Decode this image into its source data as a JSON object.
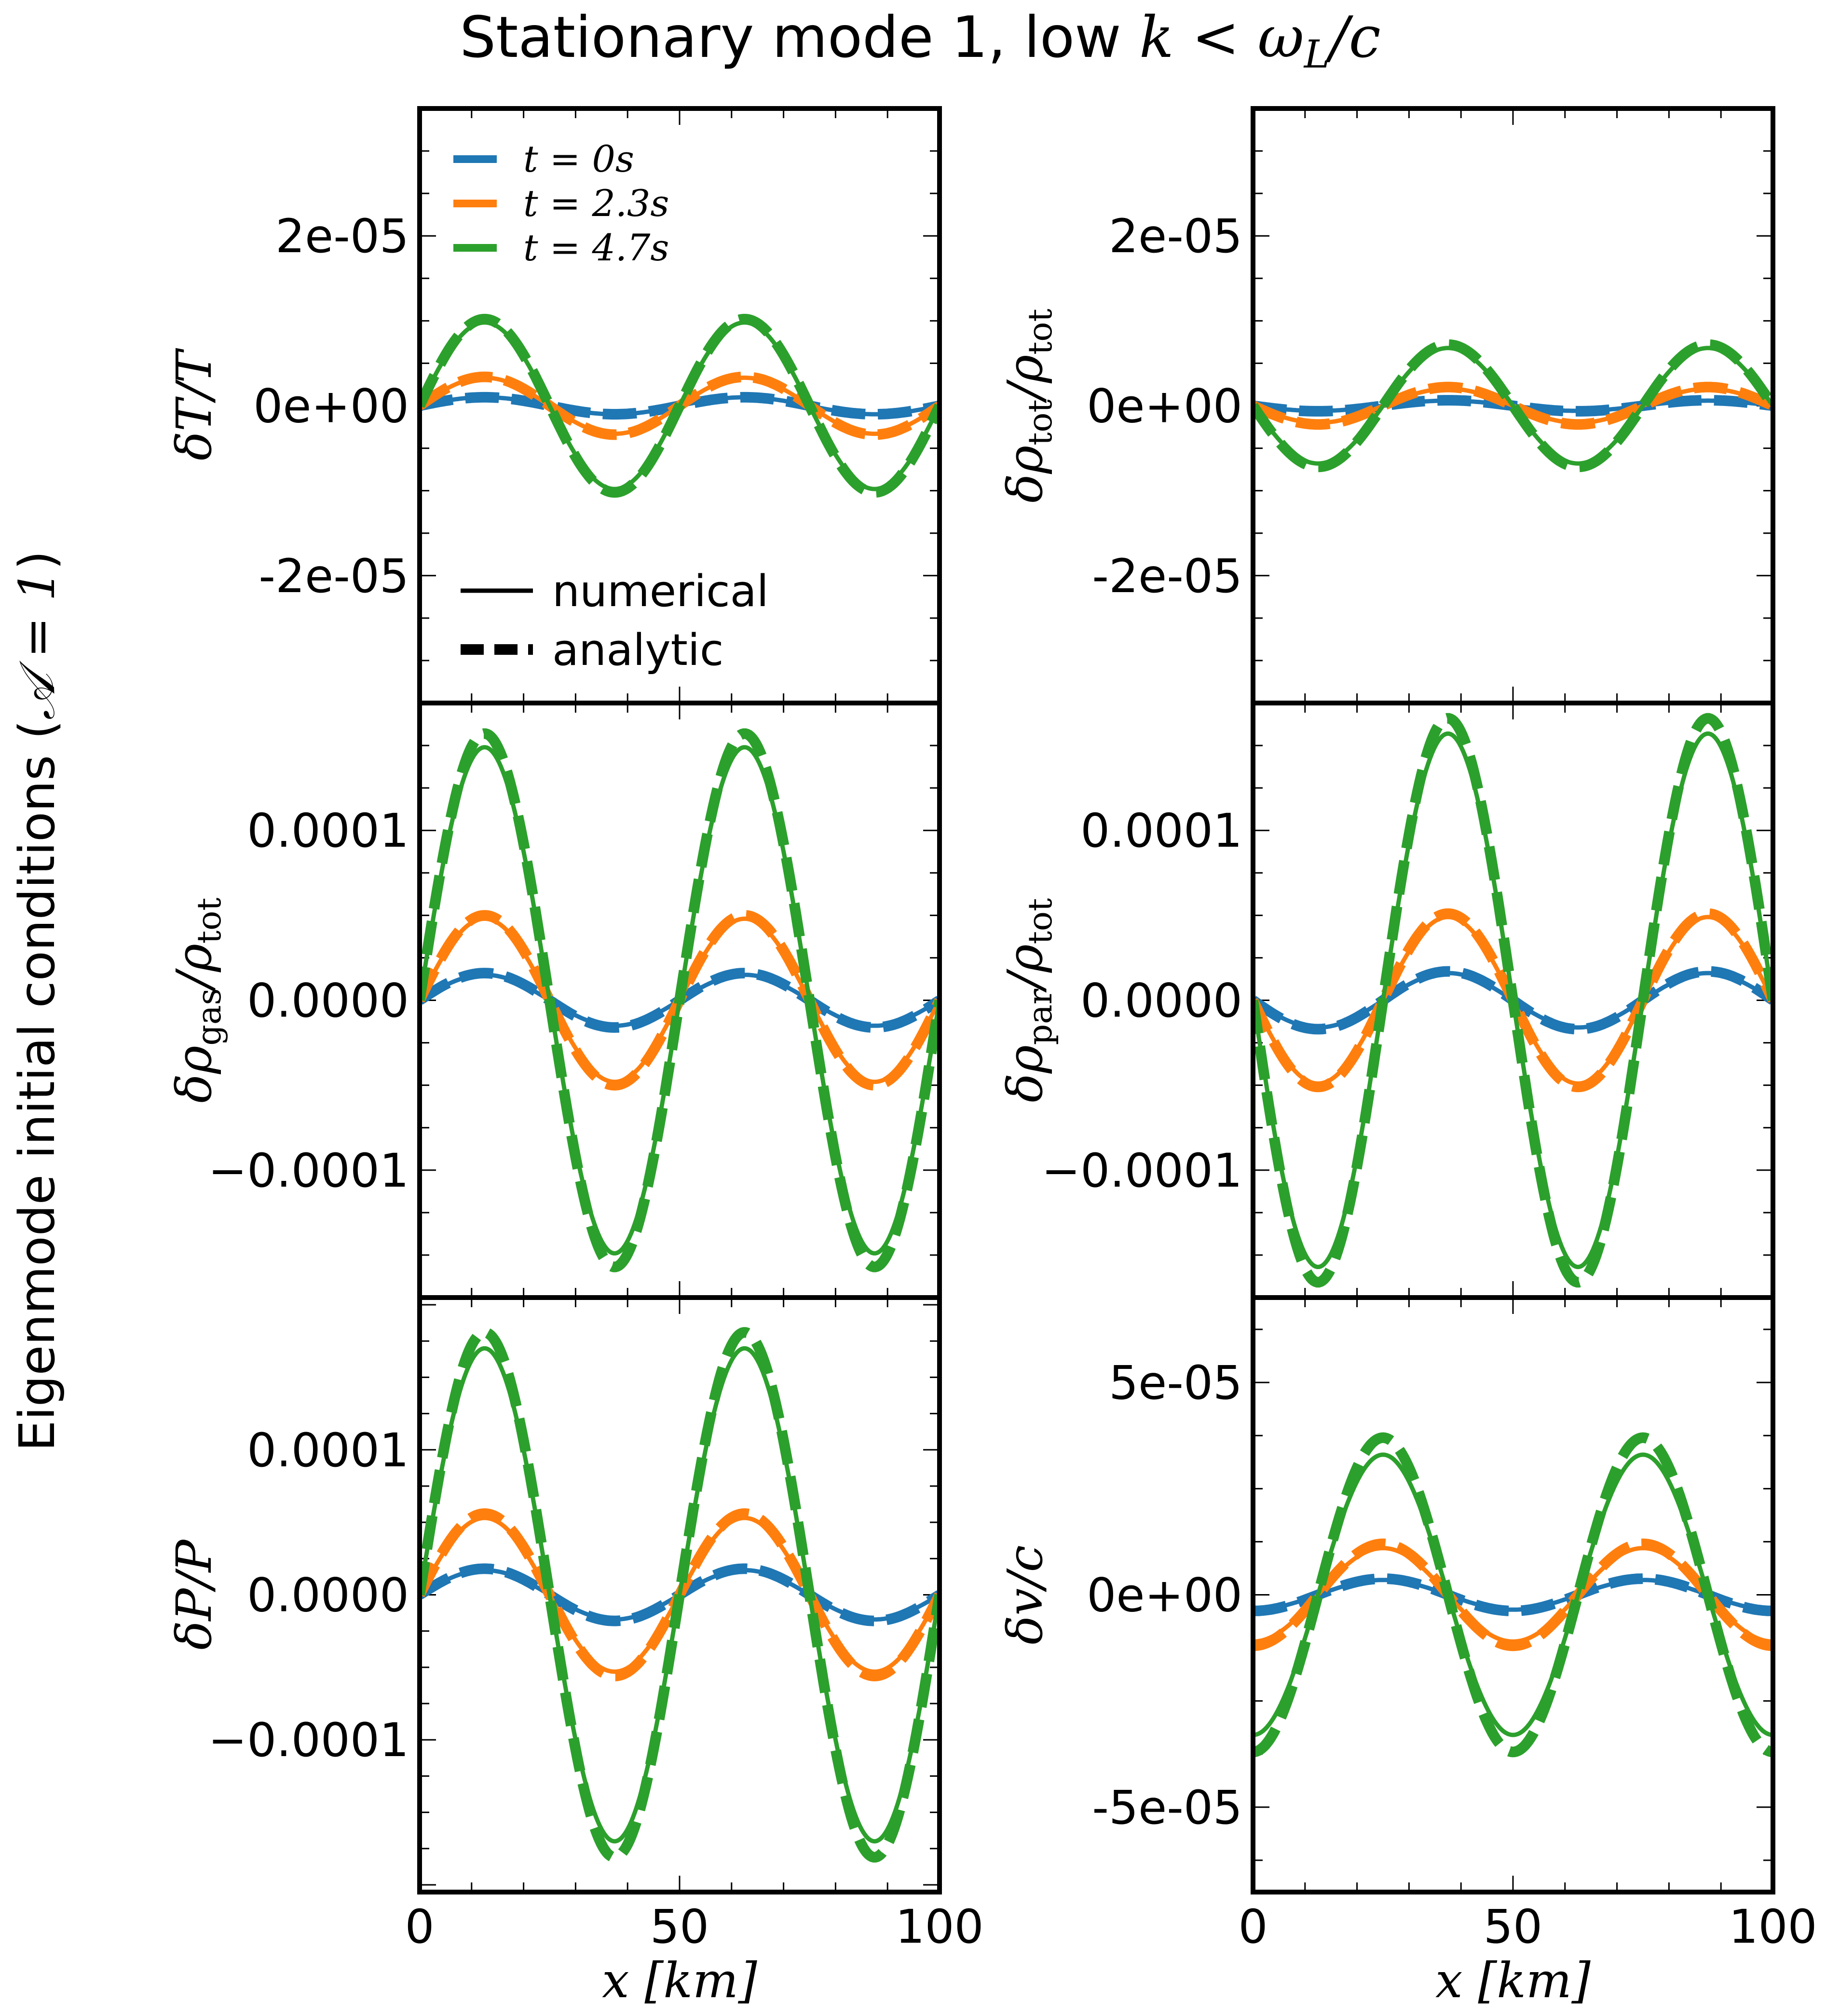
{
  "figure": {
    "title_text": "Stationary mode 1, low ",
    "title_math": "k < ω",
    "title_sub": "L",
    "title_tail": "/c",
    "side_label_text": "Eigenmode initial conditions (",
    "side_label_math": "𝒜 = 1",
    "side_label_tail": ")"
  },
  "chart_data": [
    {
      "type": "line",
      "id": "dT_T",
      "ylabel": {
        "main": "δT/T",
        "sub": ""
      },
      "xlim": [
        0,
        100
      ],
      "ylim": [
        -3.5e-05,
        3.5e-05
      ],
      "yticks": [
        -2e-05,
        0,
        2e-05
      ],
      "ytick_labels": [
        "-2e-05",
        "0e+00",
        "2e-05"
      ],
      "xticks": [
        0,
        50,
        100
      ],
      "xtick_labels": [
        "",
        "",
        ""
      ],
      "xlabel": "",
      "amp_scale": 1,
      "series": [
        {
          "name": "t = 0s",
          "color": "#1f77b4",
          "num_amp": 1e-06,
          "ana_amp": 1e-06,
          "phase": "sin"
        },
        {
          "name": "t = 2.3s",
          "color": "#ff7f0e",
          "num_amp": 3.3e-06,
          "ana_amp": 3.4e-06,
          "phase": "sin"
        },
        {
          "name": "t = 4.7s",
          "color": "#2ca02c",
          "num_amp": 9.8e-06,
          "ana_amp": 1.02e-05,
          "phase": "sin"
        }
      ],
      "legend": {
        "placement": "top-left",
        "entries": [
          "t = 0s",
          "t = 2.3s",
          "t = 4.7s"
        ],
        "style_entries": [
          "numerical",
          "analytic"
        ]
      }
    },
    {
      "type": "line",
      "id": "drho_tot",
      "ylabel": {
        "main": "δρ",
        "sub": "tot",
        "tail": "/ρ",
        "sub2": "tot"
      },
      "xlim": [
        0,
        100
      ],
      "ylim": [
        -3.5e-05,
        3.5e-05
      ],
      "yticks": [
        -2e-05,
        0,
        2e-05
      ],
      "ytick_labels": [
        "-2e-05",
        "0e+00",
        "2e-05"
      ],
      "xticks": [
        0,
        50,
        100
      ],
      "xtick_labels": [
        "",
        "",
        ""
      ],
      "xlabel": "",
      "series": [
        {
          "name": "t = 0s",
          "color": "#1f77b4",
          "num_amp": 6e-07,
          "ana_amp": 6.5e-07,
          "phase": "-sin"
        },
        {
          "name": "t = 2.3s",
          "color": "#ff7f0e",
          "num_amp": 2e-06,
          "ana_amp": 2.2e-06,
          "phase": "-sin"
        },
        {
          "name": "t = 4.7s",
          "color": "#2ca02c",
          "num_amp": 6.8e-06,
          "ana_amp": 7.2e-06,
          "phase": "-sin"
        }
      ]
    },
    {
      "type": "line",
      "id": "drho_gas",
      "ylabel": {
        "main": "δρ",
        "sub": "gas",
        "tail": "/ρ",
        "sub2": "tot"
      },
      "xlim": [
        0,
        100
      ],
      "ylim": [
        -0.000175,
        0.000175
      ],
      "yticks": [
        -0.0001,
        0,
        0.0001
      ],
      "ytick_labels": [
        "−0.0001",
        "0.0000",
        "0.0001"
      ],
      "xticks": [
        0,
        50,
        100
      ],
      "xtick_labels": [
        "",
        "",
        ""
      ],
      "xlabel": "",
      "series": [
        {
          "name": "t = 0s",
          "color": "#1f77b4",
          "num_amp": 1.5e-05,
          "ana_amp": 1.6e-05,
          "phase": "sin"
        },
        {
          "name": "t = 2.3s",
          "color": "#ff7f0e",
          "num_amp": 4.8e-05,
          "ana_amp": 5e-05,
          "phase": "sin"
        },
        {
          "name": "t = 4.7s",
          "color": "#2ca02c",
          "num_amp": 0.000149,
          "ana_amp": 0.000157,
          "phase": "sin"
        }
      ]
    },
    {
      "type": "line",
      "id": "drho_par",
      "ylabel": {
        "main": "δρ",
        "sub": "par",
        "tail": "/ρ",
        "sub2": "tot"
      },
      "xlim": [
        0,
        100
      ],
      "ylim": [
        -0.000175,
        0.000175
      ],
      "yticks": [
        -0.0001,
        0,
        0.0001
      ],
      "ytick_labels": [
        "−0.0001",
        "0.0000",
        "0.0001"
      ],
      "xticks": [
        0,
        50,
        100
      ],
      "xtick_labels": [
        "",
        "",
        ""
      ],
      "xlabel": "",
      "series": [
        {
          "name": "t = 0s",
          "color": "#1f77b4",
          "num_amp": 1.6e-05,
          "ana_amp": 1.7e-05,
          "phase": "-sin"
        },
        {
          "name": "t = 2.3s",
          "color": "#ff7f0e",
          "num_amp": 4.9e-05,
          "ana_amp": 5.1e-05,
          "phase": "-sin"
        },
        {
          "name": "t = 4.7s",
          "color": "#2ca02c",
          "num_amp": 0.000157,
          "ana_amp": 0.000166,
          "phase": "-sin"
        }
      ]
    },
    {
      "type": "line",
      "id": "dP_P",
      "ylabel": {
        "main": "δP/P",
        "sub": ""
      },
      "xlim": [
        0,
        100
      ],
      "ylim": [
        -0.000205,
        0.000205
      ],
      "yticks": [
        -0.0001,
        0,
        0.0001
      ],
      "ytick_labels": [
        "−0.0001",
        "0.0000",
        "0.0001"
      ],
      "xticks": [
        0,
        50,
        100
      ],
      "xtick_labels": [
        "0",
        "50",
        "100"
      ],
      "xlabel": "x [km]",
      "series": [
        {
          "name": "t = 0s",
          "color": "#1f77b4",
          "num_amp": 1.7e-05,
          "ana_amp": 1.8e-05,
          "phase": "sin"
        },
        {
          "name": "t = 2.3s",
          "color": "#ff7f0e",
          "num_amp": 5.3e-05,
          "ana_amp": 5.6e-05,
          "phase": "sin"
        },
        {
          "name": "t = 4.7s",
          "color": "#2ca02c",
          "num_amp": 0.00017,
          "ana_amp": 0.000181,
          "phase": "sin"
        }
      ]
    },
    {
      "type": "line",
      "id": "dv_c",
      "ylabel": {
        "main": "δv/c",
        "sub": ""
      },
      "xlim": [
        0,
        100
      ],
      "ylim": [
        -7e-05,
        7e-05
      ],
      "yticks": [
        -5e-05,
        0,
        5e-05
      ],
      "ytick_labels": [
        "-5e-05",
        "0e+00",
        "5e-05"
      ],
      "xticks": [
        0,
        50,
        100
      ],
      "xtick_labels": [
        "0",
        "50",
        "100"
      ],
      "xlabel": "x [km]",
      "series": [
        {
          "name": "t = 0s",
          "color": "#1f77b4",
          "num_amp": 3.5e-06,
          "ana_amp": 3.8e-06,
          "phase": "-cos"
        },
        {
          "name": "t = 2.3s",
          "color": "#ff7f0e",
          "num_amp": 1.1e-05,
          "ana_amp": 1.2e-05,
          "phase": "-cos"
        },
        {
          "name": "t = 4.7s",
          "color": "#2ca02c",
          "num_amp": 3.3e-05,
          "ana_amp": 3.7e-05,
          "phase": "-cos"
        }
      ]
    }
  ]
}
